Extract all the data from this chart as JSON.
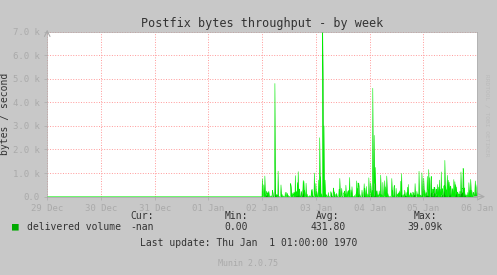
{
  "title": "Postfix bytes throughput - by week",
  "ylabel": "bytes / second",
  "bg_color": "#C8C8C8",
  "plot_bg_color": "#FFFFFF",
  "grid_color": "#FF9999",
  "line_color": "#00EE00",
  "fill_color": "#00AA00",
  "axis_color": "#999999",
  "text_color": "#333333",
  "legend_label": "delivered volume",
  "legend_color": "#00AA00",
  "cur_label": "Cur:",
  "cur": "-nan",
  "min_label": "Min:",
  "min_val": "0.00",
  "avg_label": "Avg:",
  "avg_val": "431.80",
  "max_label": "Max:",
  "max_val": "39.09k",
  "last_update": "Last update: Thu Jan  1 01:00:00 1970",
  "munin_version": "Munin 2.0.75",
  "xlim_start": -8,
  "xlim_end": 0,
  "ylim_min": 0,
  "ylim_max": 7000,
  "x_ticks": [
    -8,
    -7,
    -6,
    -5,
    -4,
    -3,
    -2,
    -1,
    0
  ],
  "x_tick_labels": [
    "29 Dec",
    "30 Dec",
    "31 Dec",
    "01 Jan",
    "02 Jan",
    "03 Jan",
    "04 Jan",
    "05 Jan",
    "06 Jan"
  ],
  "y_ticks": [
    0,
    1000,
    2000,
    3000,
    4000,
    5000,
    6000,
    7000
  ],
  "y_tick_labels": [
    "0.0",
    "1.0 k",
    "2.0 k",
    "3.0 k",
    "4.0 k",
    "5.0 k",
    "6.0 k",
    "7.0 k"
  ],
  "rrdtool_text": "RRDTOOL / TOBI OETIKER",
  "seed": 42
}
